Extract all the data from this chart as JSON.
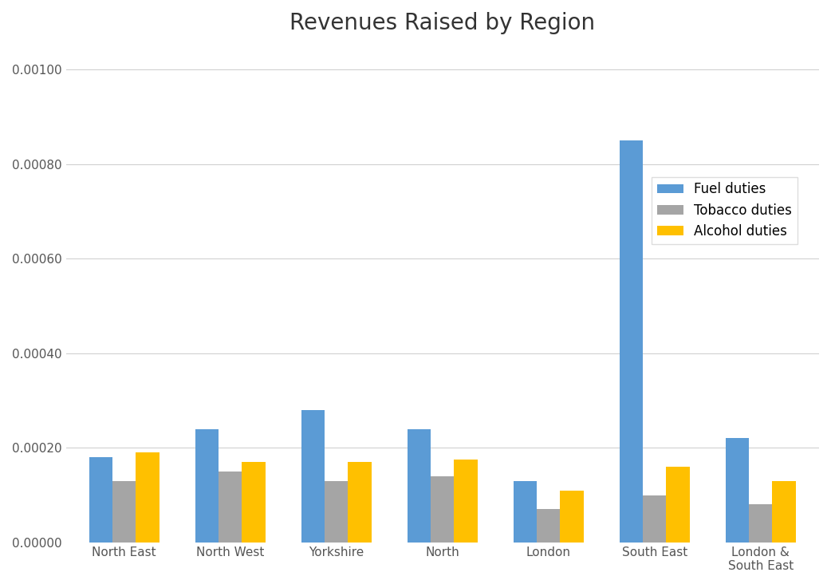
{
  "title": "Revenues Raised by Region",
  "categories": [
    "North East",
    "North West",
    "Yorkshire",
    "North",
    "London",
    "South East",
    "London &\nSouth East"
  ],
  "series": {
    "Fuel duties": [
      0.00018,
      0.00024,
      0.00028,
      0.00024,
      0.00013,
      0.00085,
      0.00022
    ],
    "Tobacco duties": [
      0.00013,
      0.00015,
      0.00013,
      0.00014,
      7e-05,
      0.0001,
      8e-05
    ],
    "Alcohol duties": [
      0.00019,
      0.00017,
      0.00017,
      0.000175,
      0.00011,
      0.00016,
      0.00013
    ]
  },
  "colors": {
    "Fuel duties": "#5B9BD5",
    "Tobacco duties": "#A5A5A5",
    "Alcohol duties": "#FFC000"
  },
  "ylim": [
    0,
    0.00105
  ],
  "yticks": [
    0.0,
    0.0002,
    0.0004,
    0.0006,
    0.0008,
    0.001
  ],
  "background_color": "#FFFFFF",
  "title_fontsize": 20,
  "tick_fontsize": 11,
  "legend_fontsize": 12
}
